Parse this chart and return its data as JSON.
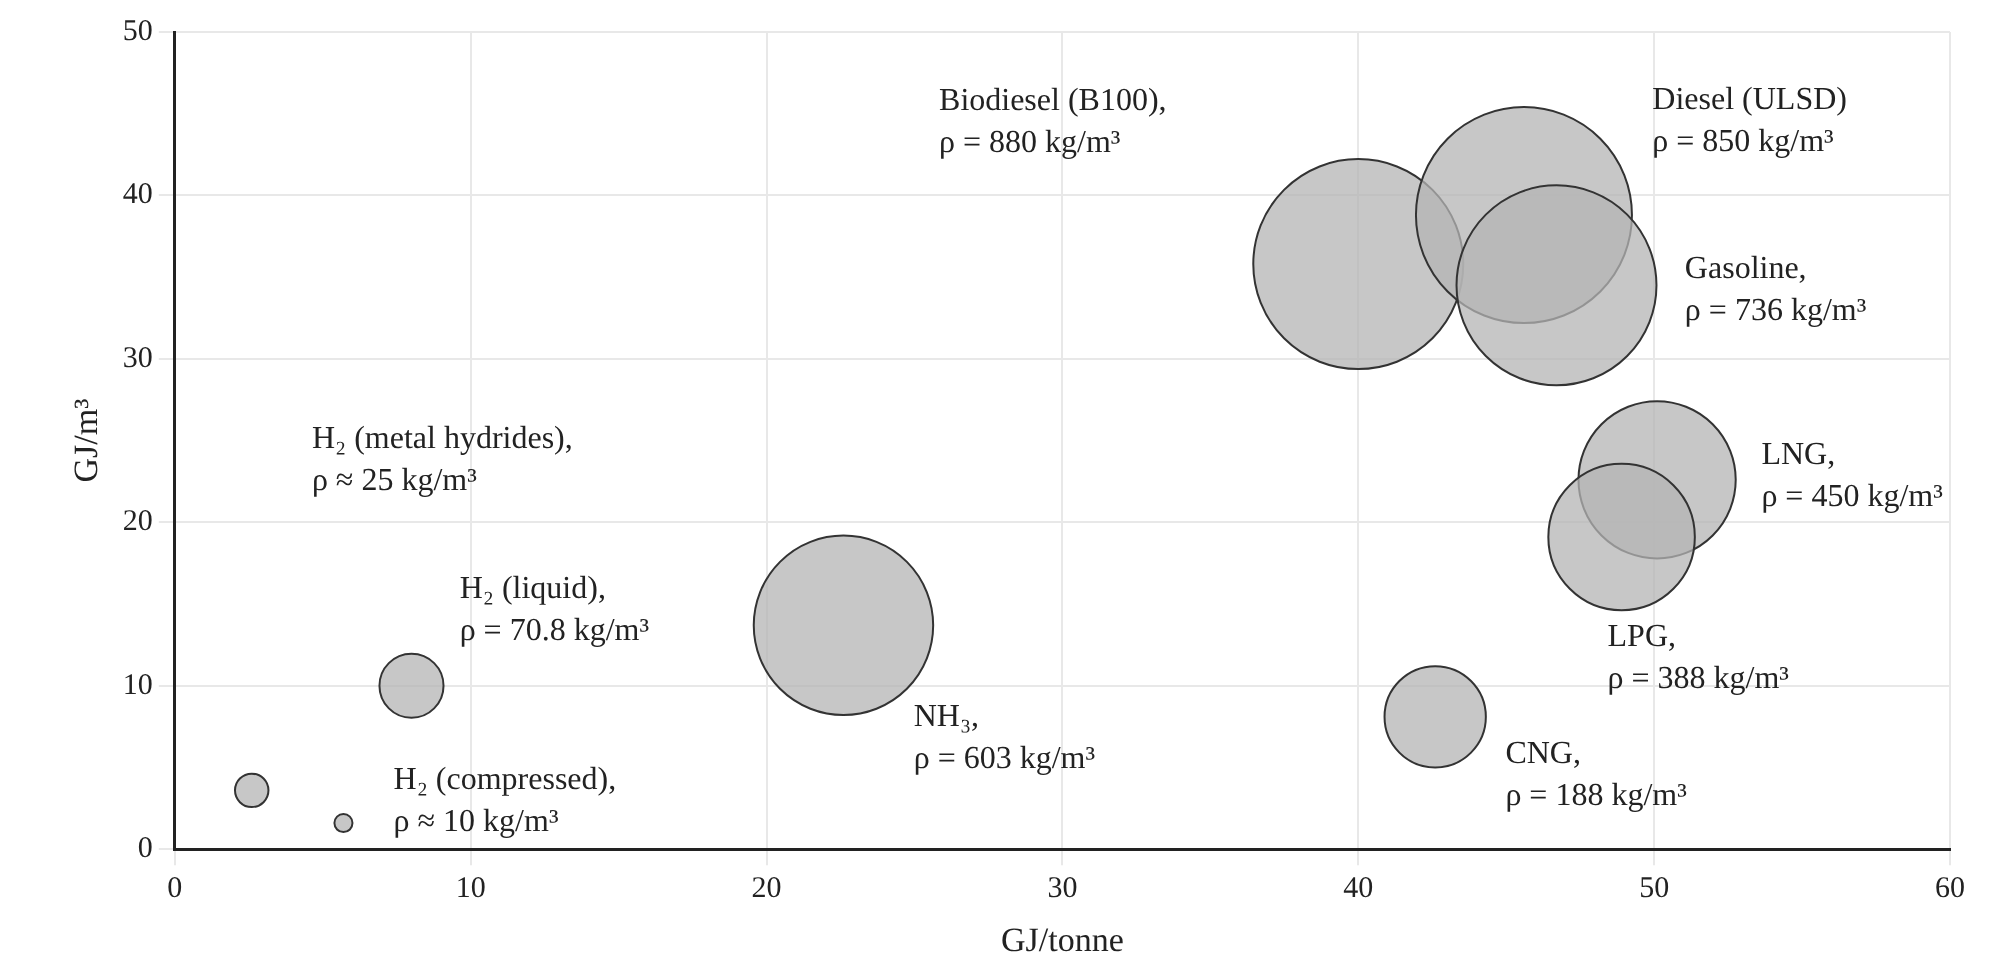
{
  "chart_data": {
    "type": "bubble",
    "xlabel": "GJ/tonne",
    "ylabel": "GJ/m³",
    "x": [
      2.6,
      5.7,
      8.0,
      22.6,
      40.0,
      45.6,
      46.7,
      50.1,
      48.9,
      42.6
    ],
    "values": [
      3.6,
      1.6,
      10.0,
      13.7,
      35.8,
      38.8,
      34.5,
      22.6,
      19.1,
      8.1
    ],
    "sizes": [
      0.024,
      0.007,
      0.088,
      0.69,
      0.945,
      1,
      0.857,
      0.53,
      0.46,
      0.22
    ],
    "color": "#b4b4b4",
    "xlim": [
      0,
      60
    ],
    "ylim": [
      0,
      50
    ],
    "xticks": [
      0,
      10,
      20,
      30,
      40,
      50,
      60
    ],
    "yticks": [
      0,
      10,
      20,
      30,
      40,
      50
    ],
    "grid": true,
    "annotations": [
      "Biodiesel (B100),\nρ = 880 kg/m³",
      "Diesel (ULSD)\nρ = 850 kg/m³",
      "Gasoline,\nρ = 736 kg/m³",
      "LNG,\nρ = 450 kg/m³",
      "LPG,\nρ = 388 kg/m³",
      "CNG,\nρ = 188 kg/m³",
      "NH₃,\nρ = 603 kg/m³",
      "H₂ (metal hydrides),\nρ ≈ 25 kg/m³",
      "H₂ (liquid),\nρ = 70.8 kg/m³",
      "H₂ (compressed),\nρ ≈ 10 kg/m³"
    ]
  }
}
